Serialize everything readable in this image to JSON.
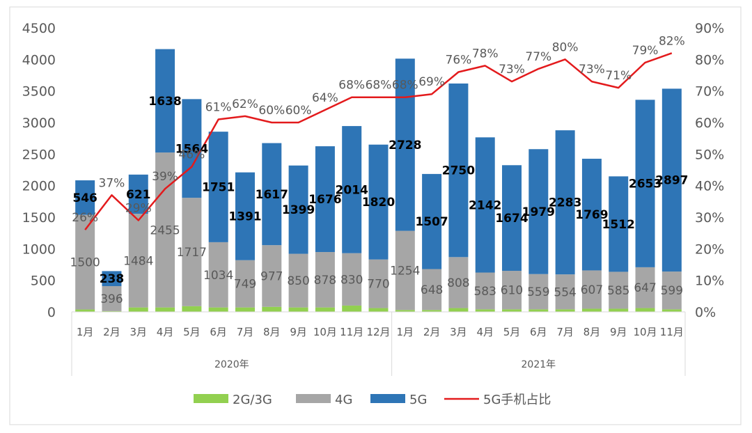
{
  "chart_data": {
    "type": "bar",
    "stacked": true,
    "years": [
      "2020年",
      "2021年"
    ],
    "categories": [
      "1月",
      "2月",
      "3月",
      "4月",
      "5月",
      "6月",
      "7月",
      "8月",
      "9月",
      "10月",
      "11月",
      "12月",
      "1月",
      "2月",
      "3月",
      "4月",
      "5月",
      "6月",
      "7月",
      "8月",
      "9月",
      "10月",
      "11月"
    ],
    "series": [
      {
        "name": "2G/3G",
        "kind": "bar",
        "color": "#92d050",
        "values": [
          38,
          12,
          70,
          70,
          90,
          70,
          70,
          80,
          70,
          70,
          100,
          60,
          30,
          30,
          60,
          40,
          40,
          40,
          40,
          50,
          50,
          60,
          40
        ]
      },
      {
        "name": "4G",
        "kind": "bar",
        "color": "#a6a6a6",
        "values": [
          1500,
          396,
          1484,
          2455,
          1717,
          1034,
          749,
          977,
          850,
          878,
          830,
          770,
          1254,
          648,
          808,
          583,
          610,
          559,
          554,
          607,
          585,
          647,
          599
        ],
        "labels": [
          "1500",
          "396",
          "1484",
          "2455",
          "1717",
          "1034",
          "749",
          "977",
          "850",
          "878",
          "830",
          "770",
          "1254",
          "648",
          "808",
          "583",
          "610",
          "559",
          "554",
          "607",
          "585",
          "647",
          "599"
        ]
      },
      {
        "name": "5G",
        "kind": "bar",
        "color": "#2e75b6",
        "values": [
          546,
          238,
          621,
          1638,
          1564,
          1751,
          1391,
          1617,
          1399,
          1676,
          2014,
          1820,
          2728,
          1507,
          2750,
          2142,
          1674,
          1979,
          2283,
          1769,
          1512,
          2653,
          2897
        ],
        "labels": [
          "546",
          "238",
          "621",
          "1638",
          "1564",
          "1751",
          "1391",
          "1617",
          "1399",
          "1676",
          "2014",
          "1820",
          "2728",
          "1507",
          "2750",
          "2142",
          "1674",
          "1979",
          "2283",
          "1769",
          "1512",
          "2653",
          "2897"
        ]
      },
      {
        "name": "5G手机占比",
        "kind": "line",
        "axis": "right",
        "color": "#e31a1c",
        "values": [
          26,
          37,
          29,
          39,
          46,
          61,
          62,
          60,
          60,
          64,
          68,
          68,
          68,
          69,
          76,
          78,
          73,
          77,
          80,
          73,
          71,
          79,
          82
        ],
        "labels": [
          "26%",
          "37%",
          "29%",
          "39%",
          "46%",
          "61%",
          "62%",
          "60%",
          "60%",
          "64%",
          "68%",
          "68%",
          "68%",
          "69%",
          "76%",
          "78%",
          "73%",
          "77%",
          "80%",
          "73%",
          "71%",
          "79%",
          "82%"
        ]
      }
    ],
    "yleft": {
      "ylim": [
        0,
        4500
      ],
      "ticks": [
        "0",
        "500",
        "1000",
        "1500",
        "2000",
        "2500",
        "3000",
        "3500",
        "4000",
        "4500"
      ]
    },
    "yright": {
      "ylim": [
        0,
        90
      ],
      "ticks": [
        "0%",
        "10%",
        "20%",
        "30%",
        "40%",
        "50%",
        "60%",
        "70%",
        "80%",
        "90%"
      ]
    },
    "grid": false,
    "legend": {
      "position": "bottom",
      "entries": [
        "2G/3G",
        "4G",
        "5G",
        "5G手机占比"
      ]
    }
  }
}
